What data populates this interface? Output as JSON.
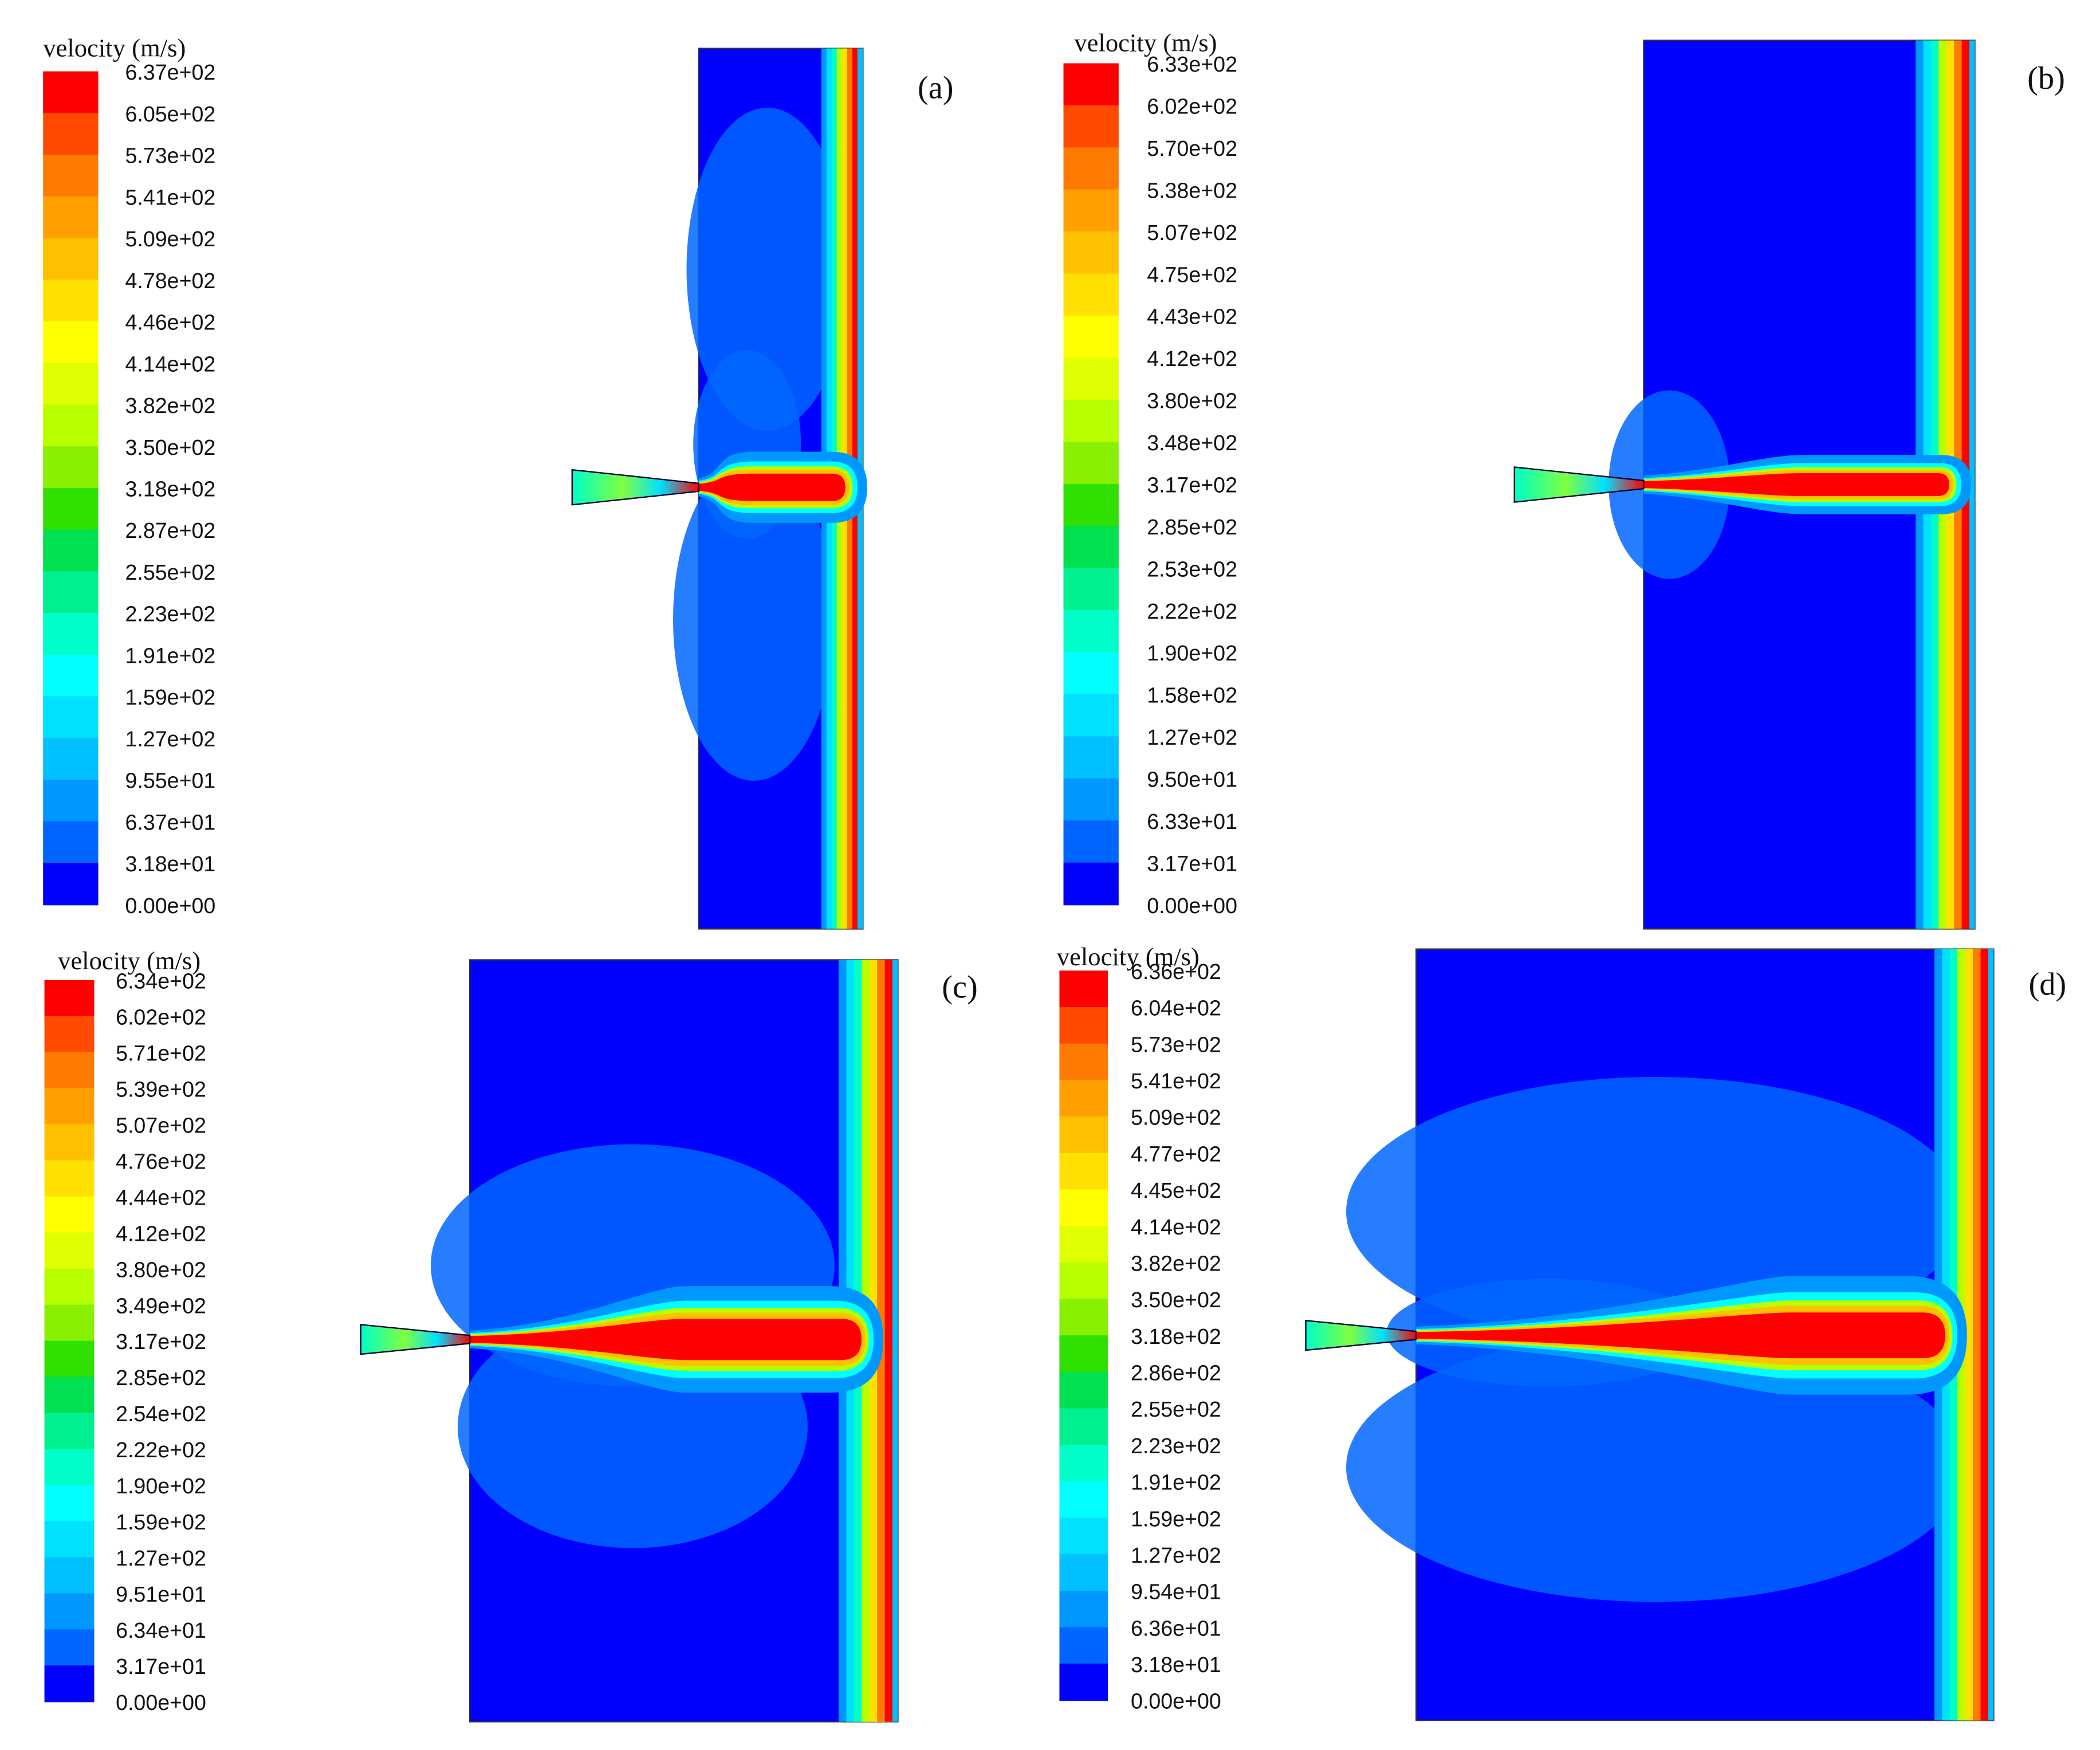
{
  "panels": [
    {
      "label": "(a)",
      "title": "velocity (m/s)",
      "levels": [
        "6.37e+02",
        "6.05e+02",
        "5.73e+02",
        "5.41e+02",
        "5.09e+02",
        "4.78e+02",
        "4.46e+02",
        "4.14e+02",
        "3.82e+02",
        "3.50e+02",
        "3.18e+02",
        "2.87e+02",
        "2.55e+02",
        "2.23e+02",
        "1.91e+02",
        "1.59e+02",
        "1.27e+02",
        "9.55e+01",
        "6.37e+01",
        "3.18e+01",
        "0.00e+00"
      ]
    },
    {
      "label": "(b)",
      "title": "velocity (m/s)",
      "levels": [
        "6.33e+02",
        "6.02e+02",
        "5.70e+02",
        "5.38e+02",
        "5.07e+02",
        "4.75e+02",
        "4.43e+02",
        "4.12e+02",
        "3.80e+02",
        "3.48e+02",
        "3.17e+02",
        "2.85e+02",
        "2.53e+02",
        "2.22e+02",
        "1.90e+02",
        "1.58e+02",
        "1.27e+02",
        "9.50e+01",
        "6.33e+01",
        "3.17e+01",
        "0.00e+00"
      ]
    },
    {
      "label": "(c)",
      "title": "velocity (m/s)",
      "levels": [
        "6.34e+02",
        "6.02e+02",
        "5.71e+02",
        "5.39e+02",
        "5.07e+02",
        "4.76e+02",
        "4.44e+02",
        "4.12e+02",
        "3.80e+02",
        "3.49e+02",
        "3.17e+02",
        "2.85e+02",
        "2.54e+02",
        "2.22e+02",
        "1.90e+02",
        "1.59e+02",
        "1.27e+02",
        "9.51e+01",
        "6.34e+01",
        "3.17e+01",
        "0.00e+00"
      ]
    },
    {
      "label": "(d)",
      "title": "velocity (m/s)",
      "levels": [
        "6.36e+02",
        "6.04e+02",
        "5.73e+02",
        "5.41e+02",
        "5.09e+02",
        "4.77e+02",
        "4.45e+02",
        "4.14e+02",
        "3.82e+02",
        "3.50e+02",
        "3.18e+02",
        "2.86e+02",
        "2.55e+02",
        "2.23e+02",
        "1.91e+02",
        "1.59e+02",
        "1.27e+02",
        "9.54e+01",
        "6.36e+01",
        "3.18e+01",
        "0.00e+00"
      ]
    }
  ]
}
